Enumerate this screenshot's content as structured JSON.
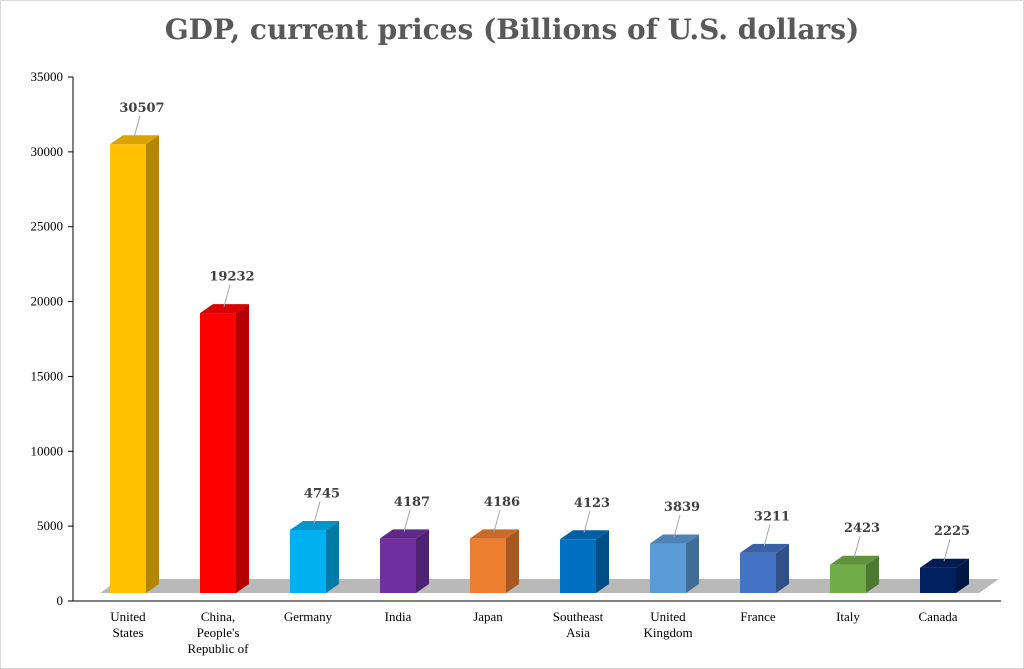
{
  "chart_data": {
    "type": "bar",
    "title": "GDP, current prices (Billions of U.S. dollars)",
    "categories": [
      [
        "United",
        "States"
      ],
      [
        "China,",
        "People's",
        "Republic of"
      ],
      [
        "Germany"
      ],
      [
        "India"
      ],
      [
        "Japan"
      ],
      [
        "Southeast",
        "Asia"
      ],
      [
        "United",
        "Kingdom"
      ],
      [
        "France"
      ],
      [
        "Italy"
      ],
      [
        "Canada"
      ]
    ],
    "values": [
      30507,
      19232,
      4745,
      4187,
      4186,
      4123,
      3839,
      3211,
      2423,
      2225
    ],
    "value_labels": [
      "30507",
      "19232",
      "4745",
      "4187",
      "4186",
      "4123",
      "3839",
      "3211",
      "2423",
      "2225"
    ],
    "colors": [
      "#FFC000",
      "#FF0000",
      "#00B0F0",
      "#7030A0",
      "#ED7D31",
      "#0070C0",
      "#5B9BD5",
      "#4472C4",
      "#70AD47",
      "#002060"
    ],
    "ylim": [
      0,
      35000
    ],
    "yticks": [
      "0",
      "5000",
      "10000",
      "15000",
      "20000",
      "25000",
      "30000",
      "35000"
    ],
    "grid": false,
    "bar_style": "3d"
  }
}
